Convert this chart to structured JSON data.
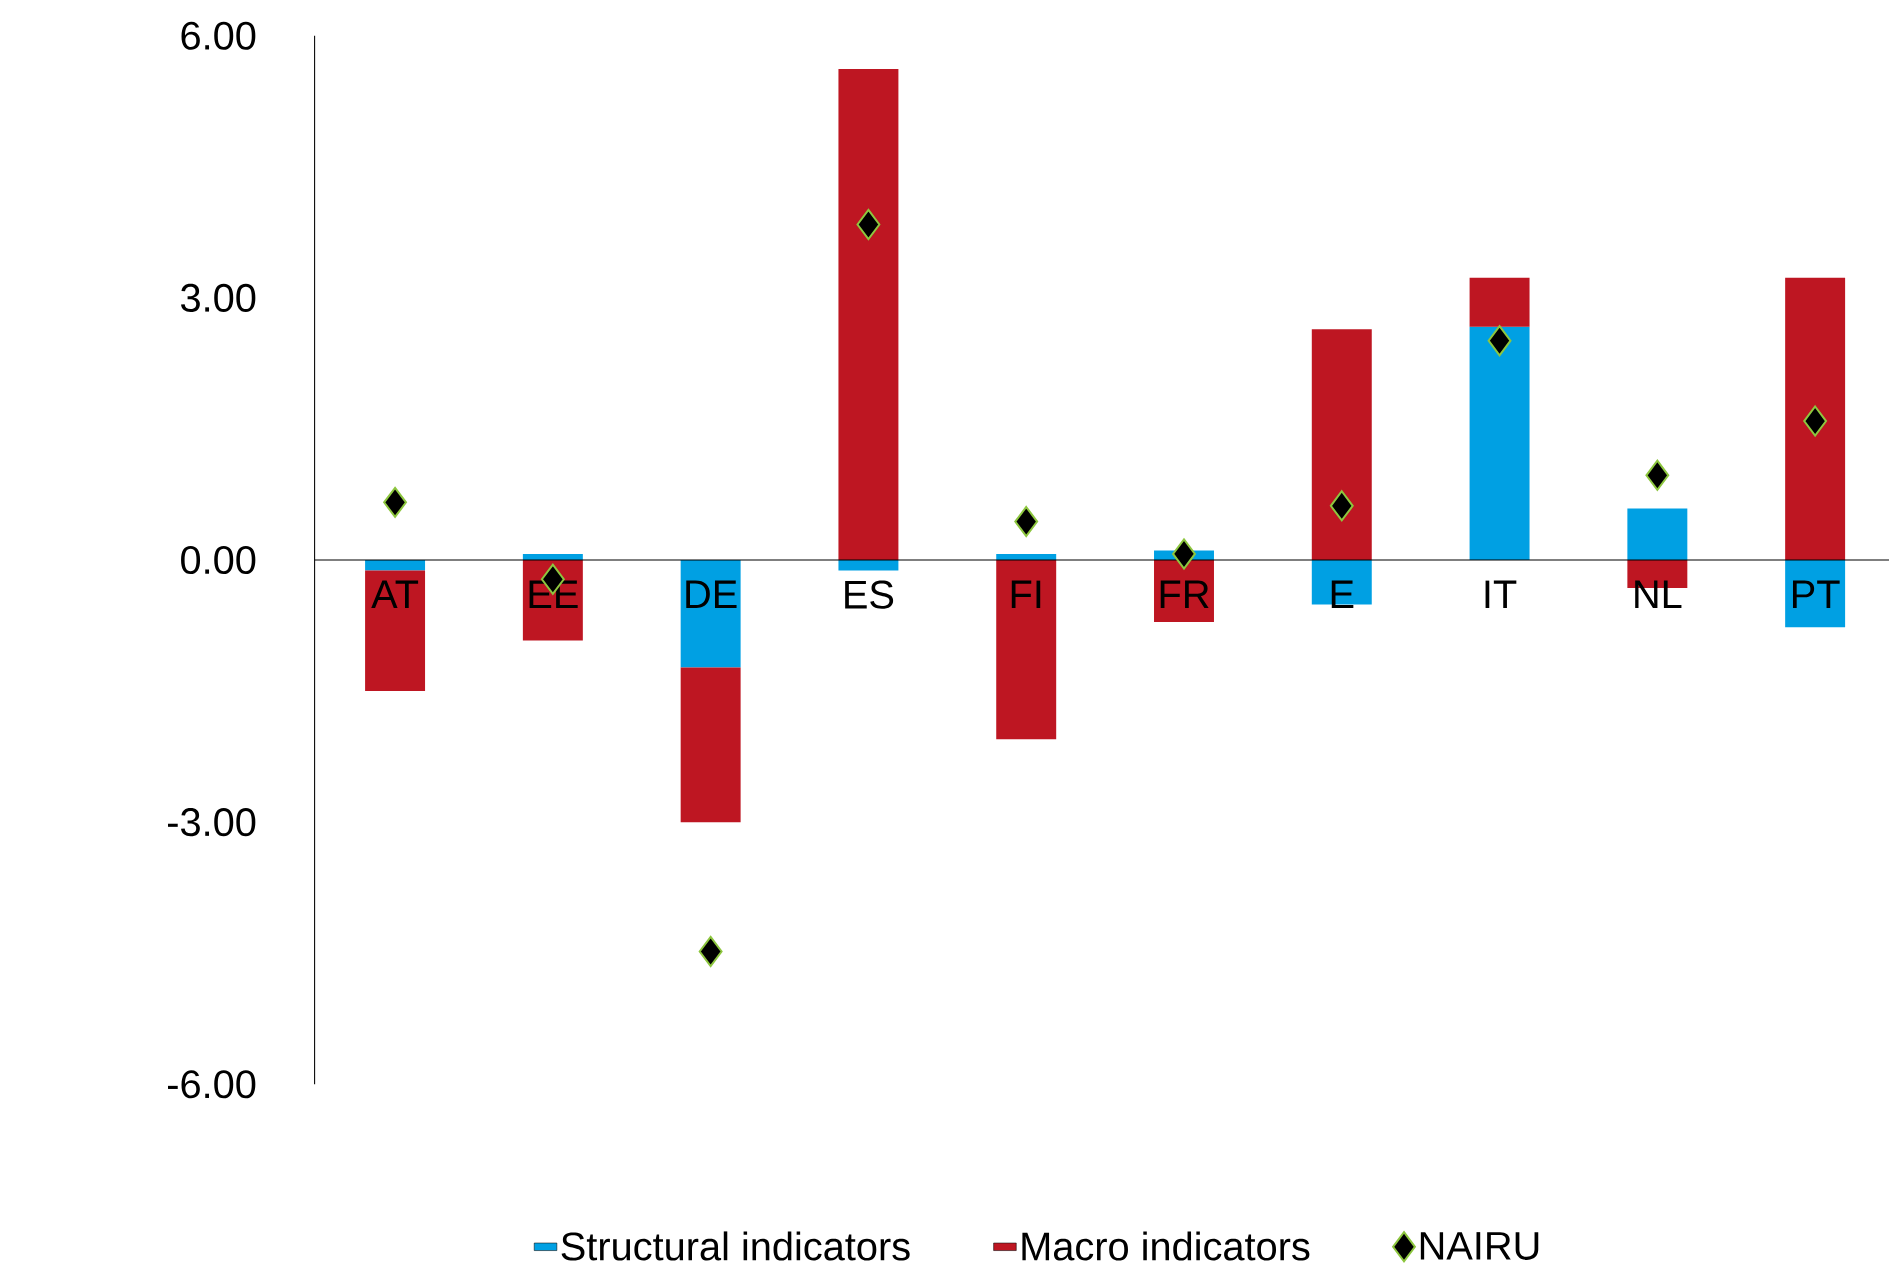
{
  "chart_data": {
    "type": "bar",
    "stacked": true,
    "categories": [
      "AT",
      "EE",
      "DE",
      "ES",
      "FI",
      "FR",
      "E",
      "IT",
      "NL",
      "PT"
    ],
    "series": [
      {
        "name": "Structural indicators",
        "color": "#00a0e3",
        "values": [
          -0.12,
          0.07,
          -1.23,
          -0.12,
          0.07,
          0.11,
          -0.51,
          2.67,
          0.59,
          -0.77
        ]
      },
      {
        "name": "Macro indicators",
        "color": "#be1622",
        "values": [
          -1.38,
          -0.92,
          -1.77,
          5.62,
          -2.05,
          -0.71,
          2.64,
          0.56,
          -0.32,
          3.23
        ]
      },
      {
        "name": "NAIRU",
        "type": "scatter",
        "color": "#000000",
        "marker": "diamond",
        "values": [
          0.66,
          -0.22,
          -4.48,
          3.84,
          0.44,
          0.07,
          0.62,
          2.51,
          0.97,
          1.59
        ]
      }
    ],
    "ylim": [
      -6,
      6
    ],
    "yticks": [
      {
        "value": -6,
        "label": "-6.00"
      },
      {
        "value": -3,
        "label": "-3.00"
      },
      {
        "value": 0,
        "label": "0.00"
      },
      {
        "value": 3,
        "label": "3.00"
      },
      {
        "value": 6,
        "label": "6.00"
      }
    ],
    "grid": false,
    "legend": "bottom"
  }
}
